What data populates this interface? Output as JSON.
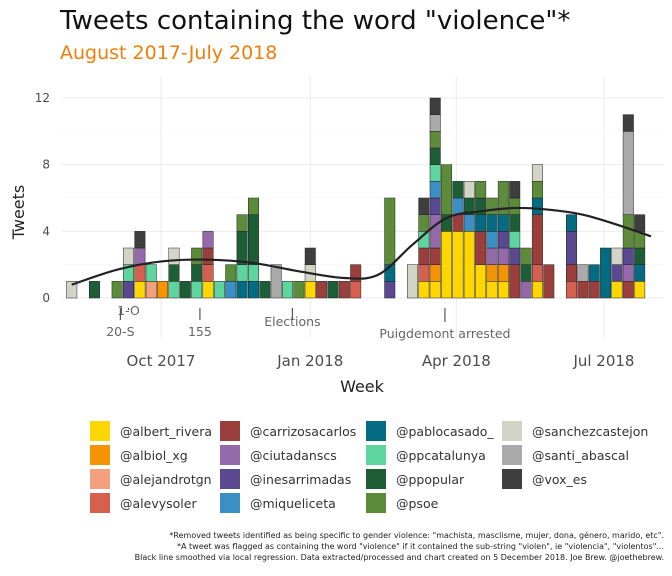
{
  "title": "Tweets containing the word \"violence\"*",
  "subtitle": "August 2017-July 2018",
  "captions": [
    "*Removed tweets identified as being specific to gender violence: \"machista, masclisme, mujer, dona, género, marido, etc\".",
    "*A tweet was flagged as containing the word \"violence\" if it contained the sub-string \"violen\", ie \"violencia\", \"violentos\"...",
    "Black line smoothed via local regression. Data extracted/processed and chart created on 5 December 2018. Joe Brew. @joethebrew."
  ],
  "colors": {
    "@albert_rivera": "#ffd700",
    "@albiol_xg": "#f59402",
    "@alejandrotgn": "#f2a07d",
    "@alevysoler": "#d6604f",
    "@carrizosacarlos": "#9b3f3c",
    "@ciutadanscs": "#946aaa",
    "@inesarrimadas": "#5a4891",
    "@miqueliceta": "#3a8fc4",
    "@pablocasado_": "#036c82",
    "@ppcatalunya": "#5ed49e",
    "@ppopular": "#1e5e36",
    "@psoe": "#5c8c3a",
    "@sanchezcastejon": "#d2d4c6",
    "@santi_abascal": "#aaaaaa",
    "@vox_es": "#3e3e3e"
  },
  "chart_data": {
    "type": "bar",
    "stacked": true,
    "xlabel": "Week",
    "ylabel": "Tweets",
    "ylim": [
      0,
      12.5
    ],
    "yticks": [
      0,
      4,
      8,
      12
    ],
    "xticks": [
      "Oct 2017",
      "Jan 2018",
      "Apr 2018",
      "Jul 2018"
    ],
    "xtick_dates": [
      "2017-10-01",
      "2018-01-01",
      "2018-04-01",
      "2018-07-01"
    ],
    "grid": true,
    "legend_position": "bottom",
    "series_order": [
      "@albert_rivera",
      "@albiol_xg",
      "@alejandrotgn",
      "@alevysoler",
      "@carrizosacarlos",
      "@ciutadanscs",
      "@inesarrimadas",
      "@miqueliceta",
      "@pablocasado_",
      "@ppcatalunya",
      "@ppopular",
      "@psoe",
      "@sanchezcastejon",
      "@santi_abascal",
      "@vox_es"
    ],
    "annotations": [
      {
        "date": "2017-09-11",
        "label": "1-O"
      },
      {
        "date": "2017-09-06",
        "label": "20-S"
      },
      {
        "date": "2017-10-25",
        "label": "155"
      },
      {
        "date": "2017-12-21",
        "label": "Elections"
      },
      {
        "date": "2018-03-25",
        "label": "Puigdemont arrested"
      }
    ],
    "weeks": [
      {
        "week": "2017-08-07",
        "stack": {
          "@sanchezcastejon": 1
        }
      },
      {
        "week": "2017-08-21",
        "stack": {
          "@ppopular": 1
        }
      },
      {
        "week": "2017-09-04",
        "stack": {
          "@psoe": 1
        }
      },
      {
        "week": "2017-09-11",
        "stack": {
          "@inesarrimadas": 1,
          "@ppcatalunya": 1,
          "@sanchezcastejon": 1
        }
      },
      {
        "week": "2017-09-18",
        "stack": {
          "@albert_rivera": 1,
          "@ciutadanscs": 1,
          "@alevysoler": 1,
          "@vox_es": 1
        }
      },
      {
        "week": "2017-09-25",
        "stack": {
          "@alejandrotgn": 1,
          "@ppcatalunya": 1
        }
      },
      {
        "week": "2017-10-02",
        "stack": {
          "@albiol_xg": 1
        }
      },
      {
        "week": "2017-10-09",
        "stack": {
          "@ppopular": 1,
          "@ppcatalunya": 1,
          "@sanchezcastejon": 1
        }
      },
      {
        "week": "2017-10-16",
        "stack": {
          "@ppopular": 1
        }
      },
      {
        "week": "2017-10-23",
        "stack": {
          "@ppcatalunya": 1,
          "@psoe": 1,
          "@ppopular": 1
        }
      },
      {
        "week": "2017-10-30",
        "stack": {
          "@albert_rivera": 1,
          "@ciutadanscs": 1,
          "@carrizosacarlos": 1,
          "@alevysoler": 1
        }
      },
      {
        "week": "2017-11-06",
        "stack": {
          "@ppcatalunya": 1
        }
      },
      {
        "week": "2017-11-13",
        "stack": {
          "@miqueliceta": 1,
          "@psoe": 1
        }
      },
      {
        "week": "2017-11-20",
        "stack": {
          "@pablocasado_": 1,
          "@ppcatalunya": 1,
          "@ppopular": 2,
          "@psoe": 1
        }
      },
      {
        "week": "2017-11-27",
        "stack": {
          "@pablocasado_": 1,
          "@ppcatalunya": 1,
          "@ppopular": 3,
          "@psoe": 1
        }
      },
      {
        "week": "2017-12-04",
        "stack": {
          "@ppopular": 1
        }
      },
      {
        "week": "2017-12-11",
        "stack": {
          "@santi_abascal": 2
        }
      },
      {
        "week": "2017-12-18",
        "stack": {
          "@ppcatalunya": 1
        }
      },
      {
        "week": "2017-12-25",
        "stack": {
          "@psoe": 1
        }
      },
      {
        "week": "2018-01-01",
        "stack": {
          "@albert_rivera": 1,
          "@sanchezcastejon": 1,
          "@vox_es": 1
        }
      },
      {
        "week": "2018-01-08",
        "stack": {
          "@carrizosacarlos": 1
        }
      },
      {
        "week": "2018-01-15",
        "stack": {
          "@ppopular": 1
        }
      },
      {
        "week": "2018-01-22",
        "stack": {
          "@carrizosacarlos": 1
        }
      },
      {
        "week": "2018-01-29",
        "stack": {
          "@alevysoler": 1,
          "@carrizosacarlos": 1
        }
      },
      {
        "week": "2018-02-19",
        "stack": {
          "@inesarrimadas": 1,
          "@psoe": 4,
          "@pablocasado_": 1
        }
      },
      {
        "week": "2018-03-05",
        "stack": {
          "@sanchezcastejon": 2
        }
      },
      {
        "week": "2018-03-12",
        "stack": {
          "@albert_rivera": 1,
          "@carrizosacarlos": 1,
          "@alevysoler": 1,
          "@ppcatalunya": 1,
          "@psoe": 1,
          "@vox_es": 1
        }
      },
      {
        "week": "2018-03-19",
        "stack": {
          "@albert_rivera": 1,
          "@albiol_xg": 1,
          "@ciutadanscs": 2,
          "@inesarrimadas": 1,
          "@carrizosacarlos": 1,
          "@ppcatalunya": 1,
          "@psoe": 1,
          "@miqueliceta": 1,
          "@ppopular": 1,
          "@santi_abascal": 1,
          "@vox_es": 1
        }
      },
      {
        "week": "2018-03-26",
        "stack": {
          "@albert_rivera": 4,
          "@psoe": 3,
          "@ppopular": 1
        }
      },
      {
        "week": "2018-04-02",
        "stack": {
          "@albert_rivera": 4,
          "@miqueliceta": 1,
          "@carrizosacarlos": 1,
          "@ppopular": 1
        }
      },
      {
        "week": "2018-04-09",
        "stack": {
          "@albert_rivera": 4,
          "@miqueliceta": 1,
          "@sanchezcastejon": 1,
          "@ppopular": 1
        }
      },
      {
        "week": "2018-04-16",
        "stack": {
          "@albert_rivera": 2,
          "@carrizosacarlos": 2,
          "@pablocasado_": 1,
          "@ppopular": 1,
          "@psoe": 1
        }
      },
      {
        "week": "2018-04-23",
        "stack": {
          "@albert_rivera": 1,
          "@albiol_xg": 1,
          "@pablocasado_": 1,
          "@miqueliceta": 1,
          "@ciutadanscs": 1,
          "@psoe": 1
        }
      },
      {
        "week": "2018-04-30",
        "stack": {
          "@albert_rivera": 1,
          "@albiol_xg": 1,
          "@inesarrimadas": 1,
          "@ciutadanscs": 1,
          "@psoe": 2,
          "@pablocasado_": 1
        }
      },
      {
        "week": "2018-05-07",
        "stack": {
          "@inesarrimadas": 1,
          "@carrizosacarlos": 2,
          "@psoe": 1,
          "@ppcatalunya": 1,
          "@ppopular": 1,
          "@vox_es": 1
        }
      },
      {
        "week": "2018-05-14",
        "stack": {
          "@ciutadanscs": 1,
          "@psoe": 1,
          "@ppopular": 1
        }
      },
      {
        "week": "2018-05-21",
        "stack": {
          "@albert_rivera": 1,
          "@carrizosacarlos": 3,
          "@alevysoler": 1,
          "@pablocasado_": 1,
          "@psoe": 1,
          "@sanchezcastejon": 1
        }
      },
      {
        "week": "2018-05-28",
        "stack": {
          "@carrizosacarlos": 2
        }
      },
      {
        "week": "2018-06-11",
        "stack": {
          "@pablocasado_": 1,
          "@carrizosacarlos": 1,
          "@inesarrimadas": 2,
          "@alevysoler": 1
        }
      },
      {
        "week": "2018-06-18",
        "stack": {
          "@carrizosacarlos": 1,
          "@santi_abascal": 1
        }
      },
      {
        "week": "2018-06-25",
        "stack": {
          "@pablocasado_": 1,
          "@carrizosacarlos": 1
        }
      },
      {
        "week": "2018-07-02",
        "stack": {
          "@pablocasado_": 3
        }
      },
      {
        "week": "2018-07-09",
        "stack": {
          "@albert_rivera": 1,
          "@sanchezcastejon": 1,
          "@inesarrimadas": 1
        }
      },
      {
        "week": "2018-07-16",
        "stack": {
          "@ciutadanscs": 1,
          "@inesarrimadas": 1,
          "@carrizosacarlos": 1,
          "@psoe": 2,
          "@santi_abascal": 5,
          "@vox_es": 1
        }
      },
      {
        "week": "2018-07-23",
        "stack": {
          "@albert_rivera": 1,
          "@pablocasado_": 1,
          "@psoe": 1,
          "@ppopular": 1,
          "@vox_es": 1
        }
      }
    ],
    "smooth_line": [
      {
        "date": "2017-08-07",
        "y": 0.8
      },
      {
        "date": "2017-09-04",
        "y": 1.7
      },
      {
        "date": "2017-10-02",
        "y": 2.2
      },
      {
        "date": "2017-10-30",
        "y": 2.3
      },
      {
        "date": "2017-11-27",
        "y": 2.1
      },
      {
        "date": "2017-12-25",
        "y": 1.6
      },
      {
        "date": "2018-01-22",
        "y": 1.2
      },
      {
        "date": "2018-02-12",
        "y": 1.4
      },
      {
        "date": "2018-03-05",
        "y": 3.2
      },
      {
        "date": "2018-03-26",
        "y": 4.8
      },
      {
        "date": "2018-04-16",
        "y": 5.2
      },
      {
        "date": "2018-05-07",
        "y": 5.4
      },
      {
        "date": "2018-05-28",
        "y": 5.3
      },
      {
        "date": "2018-06-18",
        "y": 5.0
      },
      {
        "date": "2018-07-09",
        "y": 4.4
      },
      {
        "date": "2018-07-30",
        "y": 3.7
      }
    ]
  }
}
